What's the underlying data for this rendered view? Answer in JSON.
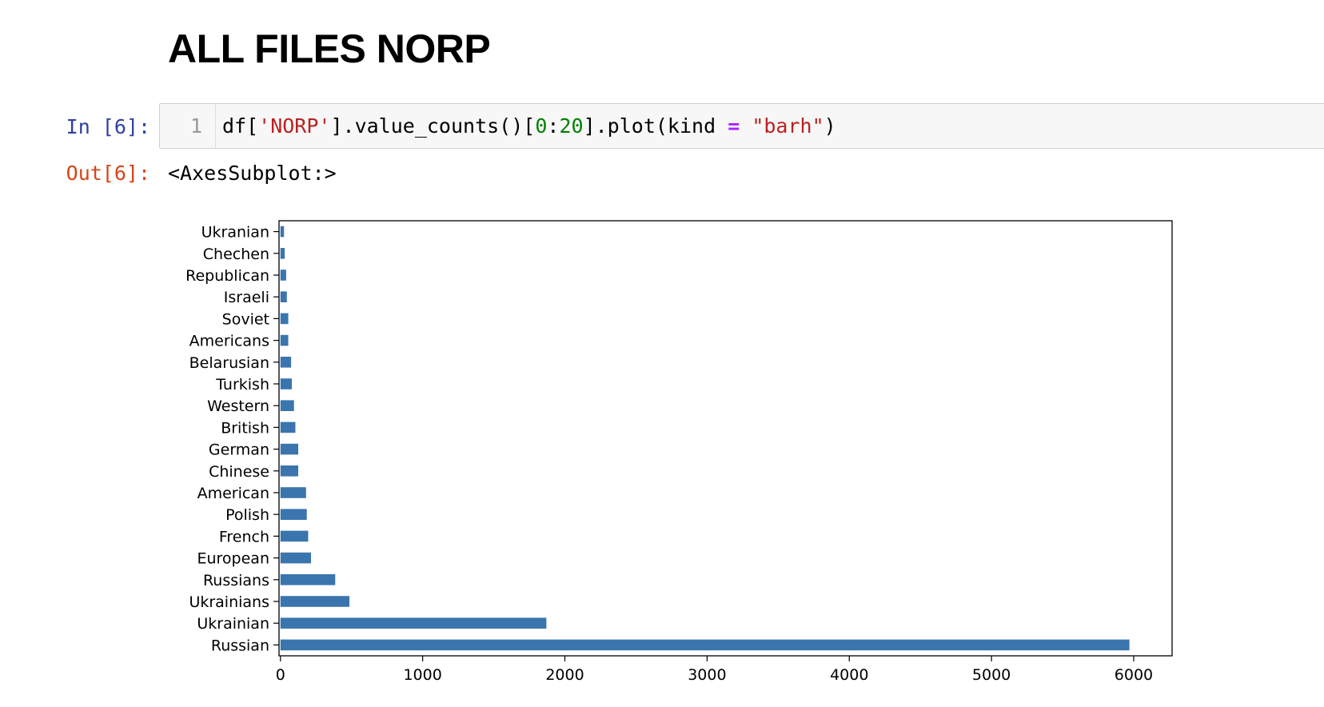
{
  "markdown": {
    "heading": "ALL FILES NORP"
  },
  "cell": {
    "in_prompt": "In [6]:",
    "out_prompt": "Out[6]:",
    "line_number": "1",
    "code": {
      "p1": "df[",
      "s1": "'NORP'",
      "p2": "].value_counts()[",
      "n1": "0",
      "p3": ":",
      "n2": "20",
      "p4": "].plot(kind ",
      "op": "=",
      "p5": " ",
      "s2": "\"barh\"",
      "p6": ")"
    },
    "output_text": "<AxesSubplot:>"
  },
  "colors": {
    "bar": "#3a75ae",
    "axis": "#000000"
  },
  "chart_data": {
    "type": "bar",
    "orientation": "horizontal",
    "categories": [
      "Russian",
      "Ukrainian",
      "Ukrainians",
      "Russians",
      "European",
      "French",
      "Polish",
      "American",
      "Chinese",
      "German",
      "British",
      "Western",
      "Turkish",
      "Belarusian",
      "Americans",
      "Soviet",
      "Israeli",
      "Republican",
      "Chechen",
      "Ukranian"
    ],
    "values": [
      5970,
      1870,
      485,
      385,
      215,
      195,
      185,
      180,
      125,
      125,
      105,
      95,
      80,
      75,
      55,
      55,
      45,
      40,
      30,
      25
    ],
    "xlim": [
      -10,
      6270
    ],
    "xticks": [
      0,
      1000,
      2000,
      3000,
      4000,
      5000,
      6000
    ],
    "grid": false,
    "legend": "none",
    "title": "",
    "xlabel": "",
    "ylabel": ""
  }
}
